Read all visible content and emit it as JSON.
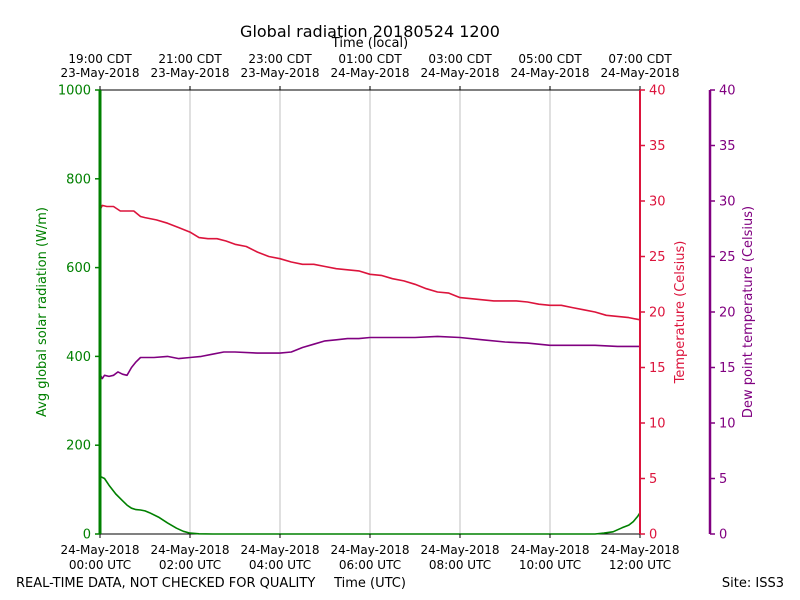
{
  "chart_data": {
    "type": "line",
    "title": "Global radiation 20180524 1200",
    "top_axis_label": "Time (local)",
    "xlabel": "Time (UTC)",
    "footer_left": "REAL-TIME DATA, NOT CHECKED FOR QUALITY",
    "footer_right": "Site: ISS3",
    "x_range_hours": [
      0,
      12
    ],
    "x_ticks_utc": [
      {
        "hour": 0,
        "line1": "24-May-2018",
        "line2": "00:00 UTC"
      },
      {
        "hour": 2,
        "line1": "24-May-2018",
        "line2": "02:00 UTC"
      },
      {
        "hour": 4,
        "line1": "24-May-2018",
        "line2": "04:00 UTC"
      },
      {
        "hour": 6,
        "line1": "24-May-2018",
        "line2": "06:00 UTC"
      },
      {
        "hour": 8,
        "line1": "24-May-2018",
        "line2": "08:00 UTC"
      },
      {
        "hour": 10,
        "line1": "24-May-2018",
        "line2": "10:00 UTC"
      },
      {
        "hour": 12,
        "line1": "24-May-2018",
        "line2": "12:00 UTC"
      }
    ],
    "x_ticks_local": [
      {
        "hour": 0,
        "line1": "19:00 CDT",
        "line2": "23-May-2018"
      },
      {
        "hour": 2,
        "line1": "21:00 CDT",
        "line2": "23-May-2018"
      },
      {
        "hour": 4,
        "line1": "23:00 CDT",
        "line2": "23-May-2018"
      },
      {
        "hour": 6,
        "line1": "01:00 CDT",
        "line2": "24-May-2018"
      },
      {
        "hour": 8,
        "line1": "03:00 CDT",
        "line2": "24-May-2018"
      },
      {
        "hour": 10,
        "line1": "05:00 CDT",
        "line2": "24-May-2018"
      },
      {
        "hour": 12,
        "line1": "07:00 CDT",
        "line2": "24-May-2018"
      }
    ],
    "grid": "vertical lines at x ticks",
    "axes": {
      "radiation": {
        "label": "Avg global solar radiation (W/m)",
        "ylim": [
          0,
          1000
        ],
        "ticks": [
          0,
          200,
          400,
          600,
          800,
          1000
        ],
        "color": "#008000"
      },
      "temperature": {
        "label": "Temperature (Celsius)",
        "ylim": [
          0,
          40
        ],
        "ticks": [
          0,
          5,
          10,
          15,
          20,
          25,
          30,
          35,
          40
        ],
        "color": "#dc143c"
      },
      "dewpoint": {
        "label": "Dew point temperature (Celsius)",
        "ylim": [
          0,
          40
        ],
        "ticks": [
          0,
          5,
          10,
          15,
          20,
          25,
          30,
          35,
          40
        ],
        "color": "#800080"
      }
    },
    "series": [
      {
        "axis": "radiation",
        "color": "#008000",
        "x": [
          0,
          0.1,
          0.2,
          0.35,
          0.5,
          0.6,
          0.7,
          0.8,
          0.9,
          1.0,
          1.1,
          1.3,
          1.5,
          1.7,
          1.85,
          2.0,
          2.2,
          2.5,
          4,
          6,
          8,
          10,
          11.0,
          11.2,
          11.4,
          11.6,
          11.75,
          11.85,
          11.95,
          12.0
        ],
        "values": [
          130,
          125,
          110,
          90,
          75,
          65,
          58,
          55,
          54,
          52,
          48,
          38,
          25,
          13,
          6,
          2,
          0.5,
          0,
          0,
          0,
          0,
          0,
          0,
          2,
          5,
          14,
          20,
          28,
          40,
          48
        ]
      },
      {
        "axis": "temperature",
        "color": "#dc143c",
        "x": [
          0,
          0.05,
          0.15,
          0.3,
          0.45,
          0.6,
          0.75,
          0.9,
          1.0,
          1.25,
          1.5,
          1.75,
          2.0,
          2.2,
          2.4,
          2.6,
          2.8,
          3.0,
          3.25,
          3.5,
          3.75,
          4.0,
          4.25,
          4.5,
          4.75,
          5.0,
          5.25,
          5.5,
          5.75,
          6.0,
          6.25,
          6.5,
          6.75,
          7.0,
          7.25,
          7.5,
          7.75,
          8.0,
          8.25,
          8.5,
          8.75,
          9.0,
          9.25,
          9.5,
          9.75,
          10.0,
          10.25,
          10.5,
          10.75,
          11.0,
          11.25,
          11.5,
          11.75,
          12.0
        ],
        "values": [
          29.2,
          29.6,
          29.5,
          29.5,
          29.1,
          29.1,
          29.1,
          28.6,
          28.5,
          28.3,
          28.0,
          27.6,
          27.2,
          26.7,
          26.6,
          26.6,
          26.4,
          26.1,
          25.9,
          25.4,
          25.0,
          24.8,
          24.5,
          24.3,
          24.3,
          24.1,
          23.9,
          23.8,
          23.7,
          23.4,
          23.3,
          23.0,
          22.8,
          22.5,
          22.1,
          21.8,
          21.7,
          21.3,
          21.2,
          21.1,
          21.0,
          21.0,
          21.0,
          20.9,
          20.7,
          20.6,
          20.6,
          20.4,
          20.2,
          20.0,
          19.7,
          19.6,
          19.5,
          19.3
        ]
      },
      {
        "axis": "dewpoint",
        "color": "#800080",
        "x": [
          0,
          0.05,
          0.1,
          0.2,
          0.3,
          0.4,
          0.5,
          0.6,
          0.7,
          0.8,
          0.9,
          1.0,
          1.2,
          1.5,
          1.75,
          2.0,
          2.25,
          2.5,
          2.75,
          3.0,
          3.5,
          4.0,
          4.25,
          4.5,
          4.75,
          5.0,
          5.25,
          5.5,
          5.75,
          6.0,
          6.5,
          7.0,
          7.5,
          8.0,
          8.5,
          9.0,
          9.5,
          10.0,
          10.5,
          11.0,
          11.5,
          12.0
        ],
        "values": [
          14.4,
          14.0,
          14.3,
          14.2,
          14.3,
          14.6,
          14.4,
          14.3,
          15.0,
          15.5,
          15.9,
          15.9,
          15.9,
          16.0,
          15.8,
          15.9,
          16.0,
          16.2,
          16.4,
          16.4,
          16.3,
          16.3,
          16.4,
          16.8,
          17.1,
          17.4,
          17.5,
          17.6,
          17.6,
          17.7,
          17.7,
          17.7,
          17.8,
          17.7,
          17.5,
          17.3,
          17.2,
          17.0,
          17.0,
          17.0,
          16.9,
          16.9
        ]
      }
    ]
  }
}
